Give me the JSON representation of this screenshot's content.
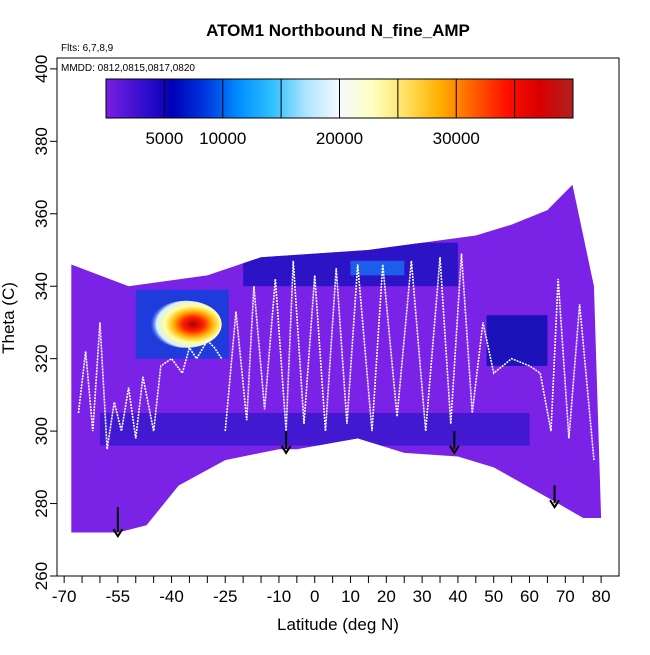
{
  "chart_data": {
    "type": "heatmap",
    "title": "ATOM1 Northbound N_fine_AMP",
    "subtitle_flights": "Flts: 6,7,8,9",
    "subtitle_dates": "MMDD: 0812,0815,0817,0820",
    "xlabel": "Latitude (deg N)",
    "ylabel": "Theta (C)",
    "xlim": [
      -72,
      85
    ],
    "ylim": [
      260,
      403
    ],
    "x_ticks": [
      -70,
      -55,
      -40,
      -25,
      -10,
      0,
      10,
      20,
      30,
      40,
      50,
      60,
      70,
      80
    ],
    "x_tick_labels": [
      "-70",
      "-55",
      "-40",
      "-25",
      "-10",
      "0",
      "10",
      "20",
      "30",
      "40",
      "50",
      "60",
      "70",
      "80"
    ],
    "x_minor_ticks": [
      -65,
      -60,
      -50,
      -45,
      -35,
      -30,
      -20,
      -15,
      -5,
      5,
      15,
      25,
      35,
      45,
      55,
      65,
      75
    ],
    "y_ticks": [
      260,
      280,
      300,
      320,
      340,
      360,
      380,
      400
    ],
    "y_tick_labels": [
      "260",
      "280",
      "300",
      "320",
      "340",
      "360",
      "380",
      "400"
    ],
    "colorbar": {
      "min": 0,
      "max": 40000,
      "ticks": [
        5000,
        10000,
        20000,
        30000
      ],
      "tick_labels": [
        "5000",
        "10000",
        "20000",
        "30000"
      ],
      "colors": [
        "#7a1fe0",
        "#3a10d0",
        "#0000b8",
        "#0038e0",
        "#0090ff",
        "#30c0ff",
        "#b0e4ff",
        "#f4faff",
        "#ffffc0",
        "#ffe060",
        "#ffb000",
        "#ff6000",
        "#ff1000",
        "#d80000",
        "#b02020"
      ]
    },
    "field_top": [
      [
        -68,
        346
      ],
      [
        -52,
        340
      ],
      [
        -30,
        343
      ],
      [
        -15,
        348
      ],
      [
        0,
        349
      ],
      [
        15,
        350
      ],
      [
        30,
        352
      ],
      [
        45,
        354
      ],
      [
        55,
        357
      ],
      [
        65,
        361
      ],
      [
        72,
        368
      ],
      [
        78,
        340
      ]
    ],
    "field_bottom": [
      [
        -68,
        272
      ],
      [
        -55,
        272
      ],
      [
        -47,
        274
      ],
      [
        -38,
        285
      ],
      [
        -25,
        292
      ],
      [
        -10,
        295
      ],
      [
        -5,
        295
      ],
      [
        12,
        298
      ],
      [
        25,
        294
      ],
      [
        40,
        293
      ],
      [
        50,
        290
      ],
      [
        68,
        280
      ],
      [
        75,
        276
      ],
      [
        80,
        276
      ]
    ],
    "hotspot": {
      "lat_range": [
        -46,
        -26
      ],
      "theta_range": [
        323,
        336
      ],
      "peak_value": 35000
    },
    "high_regions": [
      {
        "lat_range": [
          -50,
          -24
        ],
        "theta_range": [
          320,
          339
        ],
        "value": 12000
      },
      {
        "lat_range": [
          48,
          65
        ],
        "theta_range": [
          318,
          332
        ],
        "value": 9000
      },
      {
        "lat_range": [
          -20,
          40
        ],
        "theta_range": [
          340,
          352
        ],
        "value": 8000
      },
      {
        "lat_range": [
          10,
          25
        ],
        "theta_range": [
          343,
          347
        ],
        "value": 14000
      },
      {
        "lat_range": [
          -60,
          60
        ],
        "theta_range": [
          296,
          305
        ],
        "value": 6000
      }
    ],
    "profiles": [
      {
        "name": "flight_track_1",
        "points": [
          [
            -66,
            305
          ],
          [
            -64,
            322
          ],
          [
            -62,
            300
          ],
          [
            -60,
            330
          ],
          [
            -58,
            295
          ],
          [
            -56,
            308
          ],
          [
            -54,
            300
          ],
          [
            -52,
            312
          ],
          [
            -50,
            298
          ],
          [
            -48,
            315
          ],
          [
            -45,
            300
          ],
          [
            -43,
            318
          ],
          [
            -40,
            320
          ],
          [
            -37,
            316
          ],
          [
            -35,
            323
          ],
          [
            -33,
            320
          ],
          [
            -30,
            325
          ],
          [
            -28,
            323
          ],
          [
            -26,
            320
          ]
        ]
      },
      {
        "name": "flight_track_2",
        "points": [
          [
            -25,
            300
          ],
          [
            -22,
            333
          ],
          [
            -19,
            303
          ],
          [
            -17,
            340
          ],
          [
            -14,
            306
          ],
          [
            -11,
            342
          ],
          [
            -8,
            300
          ],
          [
            -6,
            347
          ],
          [
            -3,
            302
          ],
          [
            0,
            343
          ],
          [
            3,
            300
          ],
          [
            6,
            345
          ],
          [
            9,
            302
          ],
          [
            12,
            346
          ],
          [
            16,
            300
          ],
          [
            19,
            346
          ],
          [
            23,
            304
          ],
          [
            27,
            347
          ],
          [
            31,
            300
          ],
          [
            35,
            348
          ],
          [
            38,
            302
          ],
          [
            41,
            349
          ],
          [
            44,
            305
          ],
          [
            47,
            330
          ],
          [
            50,
            316
          ],
          [
            55,
            320
          ],
          [
            60,
            318
          ],
          [
            63,
            316
          ],
          [
            66,
            300
          ],
          [
            68,
            342
          ],
          [
            71,
            298
          ],
          [
            74,
            335
          ],
          [
            78,
            292
          ]
        ]
      }
    ],
    "arrows": [
      {
        "lat": -55,
        "theta_top": 279,
        "theta_bottom": 271
      },
      {
        "lat": -8,
        "theta_top": 300,
        "theta_bottom": 294
      },
      {
        "lat": 39,
        "theta_top": 300,
        "theta_bottom": 294
      },
      {
        "lat": 67,
        "theta_top": 285,
        "theta_bottom": 279
      }
    ]
  }
}
